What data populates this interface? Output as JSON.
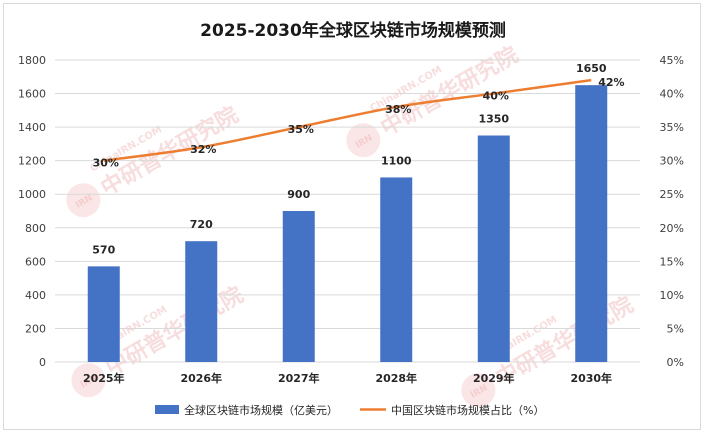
{
  "chart_data": {
    "type": "bar",
    "title": "2025-2030年全球区块链市场规模预测",
    "categories": [
      "2025年",
      "2026年",
      "2027年",
      "2028年",
      "2029年",
      "2030年"
    ],
    "series": [
      {
        "name": "全球区块链市场规模（亿美元）",
        "type": "bar",
        "axis": "left",
        "values": [
          570,
          720,
          900,
          1100,
          1350,
          1650
        ],
        "labels": [
          "570",
          "720",
          "900",
          "1100",
          "1350",
          "1650"
        ]
      },
      {
        "name": "中国区块链市场规模占比（%）",
        "type": "line",
        "axis": "right",
        "values": [
          30,
          32,
          35,
          38,
          40,
          42
        ],
        "labels": [
          "30%",
          "32%",
          "35%",
          "38%",
          "40%",
          "42%"
        ]
      }
    ],
    "ylim_left": [
      0,
      1800
    ],
    "yticks_left": [
      "0",
      "200",
      "400",
      "600",
      "800",
      "1000",
      "1200",
      "1400",
      "1600",
      "1800"
    ],
    "ylim_right": [
      0,
      45
    ],
    "yticks_right": [
      "0%",
      "5%",
      "10%",
      "15%",
      "20%",
      "25%",
      "30%",
      "35%",
      "40%",
      "45%"
    ],
    "grid": true,
    "legend": "bottom",
    "colors": {
      "bar": "#4472c4",
      "line": "#ed7d31",
      "grid": "#d9d9d9"
    }
  },
  "watermark": {
    "text_cn": "中研普华研究院",
    "text_url": "ChinaIRN.COM",
    "logo": "IRN"
  }
}
